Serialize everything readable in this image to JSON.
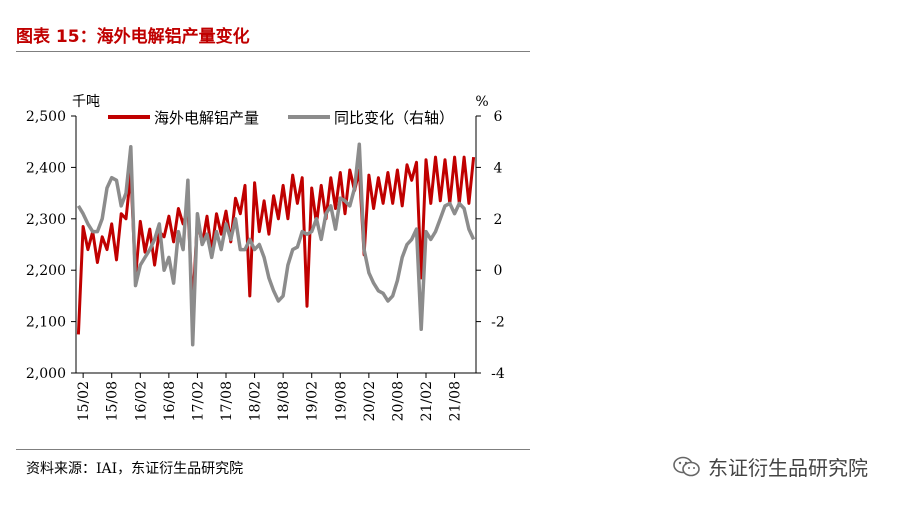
{
  "title": "图表 15：海外电解铝产量变化",
  "source": "资料来源：IAI，东证衍生品研究院",
  "watermark": "东证衍生品研究院",
  "colors": {
    "series1": "#c00000",
    "series2": "#8c8c8c",
    "title": "#c00000"
  },
  "chart_data": {
    "type": "line",
    "y_left_label": "千吨",
    "y_right_label": "%",
    "ylim_left": [
      2000,
      2500
    ],
    "ylim_right": [
      -4,
      6
    ],
    "y_left_ticks": [
      2000,
      2100,
      2200,
      2300,
      2400,
      2500
    ],
    "y_left_tick_labels": [
      "2,000",
      "2,100",
      "2,200",
      "2,300",
      "2,400",
      "2,500"
    ],
    "y_right_ticks": [
      -4,
      -2,
      0,
      2,
      4,
      6
    ],
    "x_tick_labels": [
      "15/02",
      "15/08",
      "16/02",
      "16/08",
      "17/02",
      "17/08",
      "18/02",
      "18/08",
      "19/02",
      "19/08",
      "20/02",
      "20/08",
      "21/02",
      "21/08"
    ],
    "x_start": "2015-01",
    "x_end": "2021-12",
    "legend_position": "top",
    "grid": false,
    "series": [
      {
        "name": "海外电解铝产量",
        "axis": "left",
        "values": [
          2075,
          2285,
          2240,
          2275,
          2215,
          2265,
          2240,
          2290,
          2220,
          2310,
          2300,
          2390,
          2185,
          2295,
          2235,
          2280,
          2210,
          2275,
          2265,
          2305,
          2255,
          2320,
          2290,
          2320,
          2130,
          2300,
          2250,
          2305,
          2235,
          2310,
          2270,
          2315,
          2255,
          2340,
          2310,
          2365,
          2150,
          2370,
          2275,
          2335,
          2270,
          2345,
          2300,
          2365,
          2300,
          2385,
          2330,
          2380,
          2130,
          2360,
          2290,
          2365,
          2300,
          2380,
          2320,
          2390,
          2310,
          2395,
          2355,
          2395,
          2230,
          2385,
          2320,
          2380,
          2330,
          2390,
          2330,
          2395,
          2325,
          2405,
          2375,
          2410,
          2185,
          2415,
          2330,
          2420,
          2335,
          2415,
          2330,
          2420,
          2330,
          2420,
          2330,
          2420
        ]
      },
      {
        "name": "同比变化（右轴）",
        "axis": "right",
        "values": [
          2.5,
          2.2,
          1.8,
          1.5,
          1.5,
          2.0,
          3.2,
          3.6,
          3.5,
          2.5,
          3.0,
          4.8,
          -0.6,
          0.2,
          0.5,
          0.8,
          1.2,
          1.8,
          0.0,
          0.5,
          -0.5,
          1.5,
          0.8,
          3.5,
          -2.9,
          2.2,
          1.0,
          1.4,
          0.5,
          1.5,
          0.8,
          1.8,
          1.2,
          2.0,
          0.8,
          0.8,
          1.2,
          0.8,
          1.0,
          0.5,
          -0.3,
          -0.8,
          -1.2,
          -1.0,
          0.2,
          0.8,
          0.9,
          1.5,
          1.4,
          1.5,
          2.0,
          1.2,
          2.2,
          2.5,
          1.6,
          2.8,
          2.7,
          2.5,
          3.2,
          4.9,
          0.8,
          -0.1,
          -0.5,
          -0.8,
          -0.9,
          -1.2,
          -1.0,
          -0.4,
          0.5,
          1.0,
          1.2,
          1.6,
          -2.3,
          1.5,
          1.2,
          1.5,
          2.0,
          2.5,
          2.6,
          2.2,
          2.6,
          2.4,
          1.6,
          1.2
        ]
      }
    ]
  }
}
